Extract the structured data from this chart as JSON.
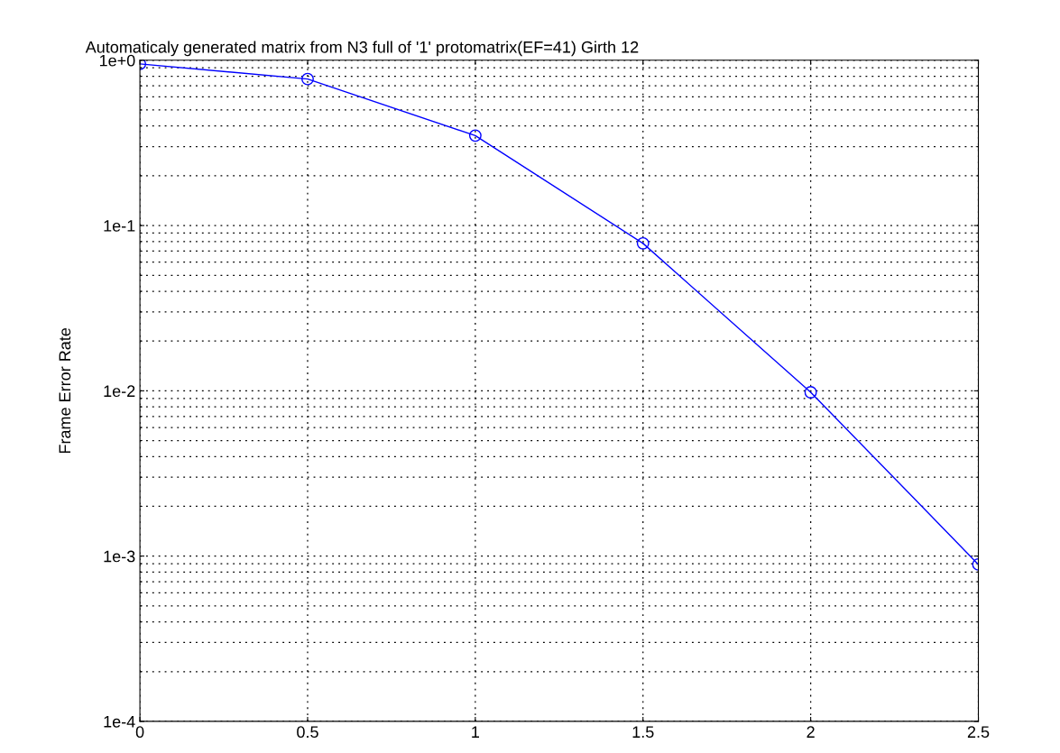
{
  "chart_data": {
    "type": "line",
    "title": "Automaticaly generated matrix from N3 full of '1' protomatrix(EF=41) Girth 12",
    "ylabel": "Frame Error Rate",
    "x": [
      0,
      0.5,
      1,
      1.5,
      2,
      2.5
    ],
    "series": [
      {
        "color": "#0000ff",
        "values": [
          0.95,
          0.77,
          0.35,
          0.078,
          0.0098,
          0.00089
        ]
      }
    ],
    "log": "y",
    "xlim": [
      0,
      2.5
    ],
    "xticks": [
      0,
      0.5,
      1,
      1.5,
      2,
      2.5
    ],
    "ylim": [
      0.0001,
      1
    ],
    "yticks": [
      {
        "value": 0.0001,
        "label": "1e-4"
      },
      {
        "value": 0.001,
        "label": "1e-3"
      },
      {
        "value": 0.01,
        "label": "1e-2"
      },
      {
        "value": 0.1,
        "label": "1e-1"
      },
      {
        "value": 1,
        "label": "1e+0"
      }
    ],
    "grid": true,
    "marker": "circle",
    "line_style": "solid"
  }
}
